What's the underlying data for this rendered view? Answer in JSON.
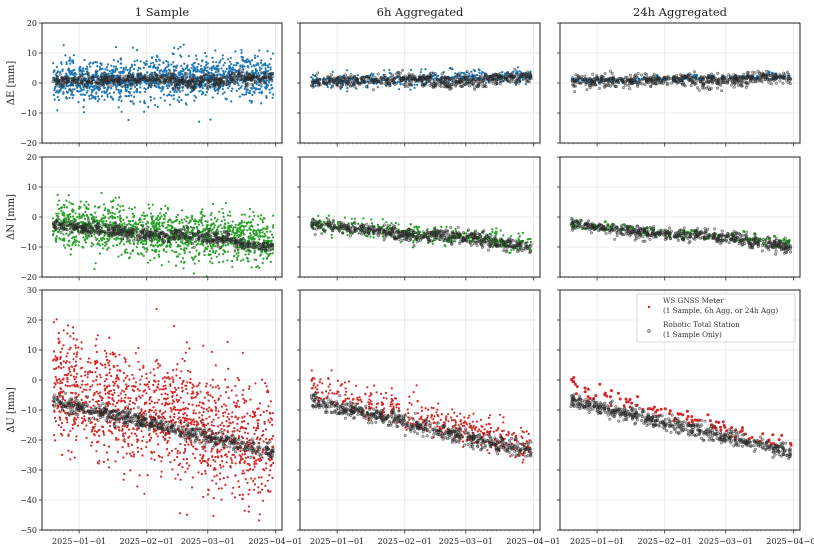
{
  "chart_data": {
    "type": "scatter",
    "layout": "3x3 grid of subplots",
    "columns": [
      {
        "title": "1 Sample",
        "key": "sample"
      },
      {
        "title": "6h Aggregated",
        "key": "agg6h"
      },
      {
        "title": "24h Aggregated",
        "key": "agg24h"
      }
    ],
    "rows": [
      {
        "ylabel": "ΔE [mm]",
        "ylim": [
          -20,
          20
        ],
        "yticks": [
          -20,
          -10,
          0,
          10,
          20
        ],
        "yticklabels": [
          "−20",
          "−10",
          "0",
          "10",
          "20"
        ],
        "gnss_color": "#1f77b4",
        "trend_start": 0.5,
        "trend_end": 2.5,
        "rts_start": 0.5,
        "rts_end": 2.0,
        "noise_sample": 3.5,
        "noise_6h": 1.2,
        "noise_24h": 0.6,
        "rts_noise": 1.0
      },
      {
        "ylabel": "ΔN [mm]",
        "ylim": [
          -20,
          20
        ],
        "yticks": [
          -20,
          -10,
          0,
          10,
          20
        ],
        "yticklabels": [
          "−20",
          "−10",
          "0",
          "10",
          "20"
        ],
        "gnss_color": "#2ca02c",
        "trend_start": -2.5,
        "trend_end": -8.5,
        "rts_start": -2.5,
        "rts_end": -10.0,
        "noise_sample": 4.0,
        "noise_6h": 1.5,
        "noise_24h": 0.8,
        "rts_noise": 1.0
      },
      {
        "ylabel": "ΔU [mm]",
        "ylim": [
          -50,
          30
        ],
        "yticks": [
          -50,
          -40,
          -30,
          -20,
          -10,
          0,
          10,
          20,
          30
        ],
        "yticklabels": [
          "−50",
          "−40",
          "−30",
          "−20",
          "−10",
          "0",
          "10",
          "20",
          "30"
        ],
        "gnss_color": "#d62728",
        "trend_start": -2.0,
        "trend_end": -22.0,
        "rts_start": -7.0,
        "rts_end": -24.0,
        "noise_sample": 10.0,
        "noise_6h": 3.0,
        "noise_24h": 1.3,
        "rts_noise": 1.3
      }
    ],
    "x_range_dates": [
      "2024-12-15",
      "2025-04-04"
    ],
    "x_data_dates": [
      "2024-12-20",
      "2025-03-31"
    ],
    "xticks": [
      "2025-01-01",
      "2025-02-01",
      "2025-03-01",
      "2025-04-01"
    ],
    "xticklabels": [
      "2025−01−01",
      "2025−02−01",
      "2025−03−01",
      "2025−04−01"
    ],
    "series": [
      {
        "name": "WS GNSS Meter (1 Sample, 6h Agg, or 24h Agg)",
        "marker": "filled dot"
      },
      {
        "name": "Robotic Total Station (1 Sample Only)",
        "marker": "grey hollow circle"
      }
    ],
    "points_per_panel": {
      "sample": 1400,
      "agg6h": 400,
      "agg24h": 100,
      "rts": 600
    },
    "grid": true,
    "legend": {
      "placement": "top-right of bottom-right panel",
      "entries": [
        {
          "line1": "WS GNSS Meter",
          "line2": "(1 Sample, 6h Agg, or 24h Agg)"
        },
        {
          "line1": "Robotic Total Station",
          "line2": "(1 Sample Only)"
        }
      ]
    },
    "rts_color": "#555555"
  }
}
